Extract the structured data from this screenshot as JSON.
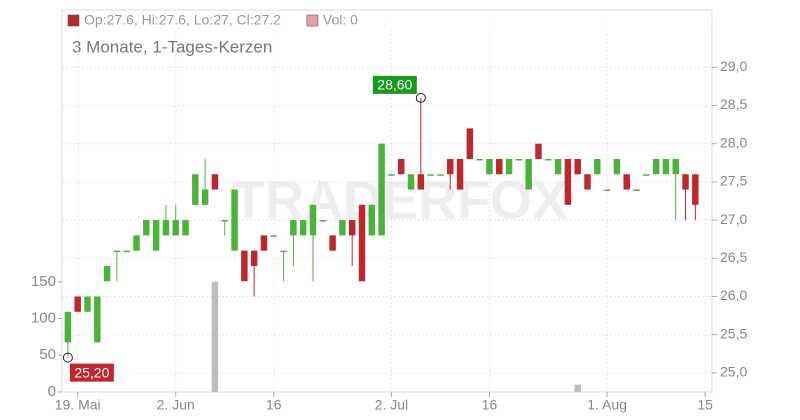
{
  "chart_data": {
    "type": "candlestick",
    "subtitle": "3 Monate, 1-Tages-Kerzen",
    "watermark": "TRADERFOX",
    "legend": [
      "Op:27.6, Hi:27.6, Lo:27, Cl:27.2",
      "Vol: 0"
    ],
    "legend_colors": [
      "#c0262d",
      "#e8a0a8"
    ],
    "up_color": "#4cb33a",
    "down_color": "#c0262d",
    "volume_color": "#bdbdbd",
    "grid": true,
    "categories": [
      null,
      null,
      null,
      null,
      null,
      null,
      null,
      null,
      null,
      null,
      null,
      null,
      null,
      null,
      null,
      null,
      null,
      null,
      null,
      null,
      null,
      null,
      null,
      null,
      null,
      null,
      null,
      null,
      null,
      null,
      null,
      null,
      null,
      null,
      null,
      null,
      null,
      null,
      null,
      null,
      null,
      null,
      null,
      null,
      null,
      null,
      null,
      null,
      null,
      null,
      null,
      null,
      null,
      null,
      null,
      null,
      null,
      null,
      null,
      null,
      null,
      null,
      null,
      null,
      null
    ],
    "open": [
      25.4,
      26.0,
      25.8,
      25.4,
      26.2,
      26.6,
      26.6,
      26.6,
      26.8,
      26.6,
      26.8,
      26.8,
      26.8,
      27.2,
      27.2,
      27.6,
      27.0,
      26.6,
      26.6,
      26.6,
      26.8,
      26.8,
      26.6,
      26.8,
      26.8,
      26.8,
      27.0,
      26.8,
      26.8,
      27.0,
      27.2,
      26.8,
      26.8,
      27.6,
      27.8,
      27.4,
      27.6,
      27.6,
      27.6,
      27.8,
      27.8,
      28.2,
      27.8,
      27.6,
      27.8,
      27.6,
      27.8,
      27.4,
      28.0,
      27.8,
      27.6,
      27.8,
      27.8,
      27.6,
      27.6,
      27.4,
      27.6,
      27.6,
      27.4,
      27.6,
      27.6,
      27.6,
      27.6,
      27.6,
      27.6
    ],
    "high": [
      25.8,
      26.0,
      26.0,
      26.0,
      26.4,
      26.6,
      26.6,
      26.8,
      27.0,
      27.0,
      27.2,
      27.2,
      27.0,
      27.6,
      27.8,
      27.6,
      27.0,
      27.4,
      26.6,
      26.6,
      26.8,
      26.8,
      26.6,
      27.0,
      27.0,
      27.2,
      27.0,
      26.8,
      27.0,
      27.0,
      27.2,
      27.2,
      28.0,
      27.6,
      27.8,
      27.6,
      28.6,
      27.6,
      27.6,
      27.8,
      27.8,
      28.2,
      27.8,
      27.8,
      27.8,
      27.8,
      27.8,
      27.8,
      28.0,
      27.8,
      27.8,
      27.8,
      27.8,
      27.6,
      27.8,
      27.4,
      27.8,
      27.6,
      27.4,
      27.6,
      27.8,
      27.8,
      27.8,
      27.6,
      27.6
    ],
    "low": [
      25.2,
      25.8,
      25.8,
      25.4,
      26.2,
      26.2,
      26.6,
      26.6,
      26.8,
      26.6,
      26.8,
      26.8,
      26.8,
      27.2,
      27.2,
      27.4,
      26.8,
      26.6,
      26.2,
      26.0,
      26.6,
      26.8,
      26.2,
      26.4,
      26.8,
      26.2,
      27.0,
      26.6,
      26.8,
      26.4,
      26.2,
      26.8,
      26.8,
      27.6,
      27.6,
      27.4,
      27.4,
      27.6,
      27.6,
      27.4,
      27.4,
      27.8,
      27.8,
      27.6,
      27.6,
      27.6,
      27.8,
      27.4,
      27.8,
      27.8,
      27.6,
      27.2,
      27.6,
      27.4,
      27.6,
      27.4,
      27.6,
      27.4,
      27.4,
      27.6,
      27.6,
      27.6,
      27.0,
      27.0,
      27.0
    ],
    "close": [
      25.8,
      25.8,
      26.0,
      26.0,
      26.4,
      26.6,
      26.6,
      26.8,
      27.0,
      27.0,
      27.0,
      27.0,
      27.0,
      27.6,
      27.4,
      27.4,
      27.0,
      27.4,
      26.2,
      26.4,
      26.6,
      26.8,
      26.6,
      27.0,
      27.0,
      27.2,
      27.0,
      26.6,
      27.0,
      26.8,
      26.2,
      27.2,
      28.0,
      27.6,
      27.6,
      27.6,
      27.4,
      27.6,
      27.6,
      27.6,
      27.4,
      27.8,
      27.8,
      27.8,
      27.6,
      27.8,
      27.8,
      27.8,
      27.8,
      27.8,
      27.8,
      27.2,
      27.6,
      27.4,
      27.8,
      27.4,
      27.8,
      27.4,
      27.4,
      27.6,
      27.8,
      27.8,
      27.8,
      27.4,
      27.2
    ],
    "volume": [
      0,
      0,
      0,
      0,
      0,
      0,
      0,
      0,
      0,
      0,
      0,
      0,
      0,
      0,
      0,
      150,
      0,
      0,
      0,
      0,
      0,
      0,
      0,
      0,
      0,
      0,
      0,
      0,
      0,
      0,
      0,
      0,
      0,
      0,
      0,
      0,
      0,
      0,
      0,
      0,
      0,
      0,
      0,
      0,
      0,
      0,
      0,
      0,
      0,
      0,
      0,
      0,
      10,
      0,
      0,
      0,
      0,
      0,
      0,
      0,
      0,
      0,
      0,
      0,
      0
    ],
    "xlim": [
      -0.6,
      65.7
    ],
    "xticks": [
      {
        "value": 1,
        "label": "19. Mai"
      },
      {
        "value": 11,
        "label": "2. Jun"
      },
      {
        "value": 21,
        "label": "16"
      },
      {
        "value": 33,
        "label": "2. Jul"
      },
      {
        "value": 43,
        "label": "16"
      },
      {
        "value": 55,
        "label": "1. Aug"
      },
      {
        "value": 65,
        "label": "15"
      }
    ],
    "ylim": [
      24.75,
      29.75
    ],
    "yticks": [
      {
        "value": 25,
        "label": "25,0"
      },
      {
        "value": 25.5,
        "label": "25,5"
      },
      {
        "value": 26,
        "label": "26,0"
      },
      {
        "value": 26.5,
        "label": "26,5"
      },
      {
        "value": 27,
        "label": "27,0"
      },
      {
        "value": 27.5,
        "label": "27,5"
      },
      {
        "value": 28,
        "label": "28,0"
      },
      {
        "value": 28.5,
        "label": "28,5"
      },
      {
        "value": 29,
        "label": "29,0"
      }
    ],
    "y2lim": [
      0,
      520
    ],
    "y2ticks": [
      0,
      50,
      100,
      150
    ],
    "annotations": [
      {
        "label": "28,60",
        "value": 28.6,
        "x": 36,
        "color": "#1a9a1a"
      },
      {
        "label": "25,20",
        "value": 25.2,
        "x": 0,
        "color": "#c0262d"
      }
    ]
  }
}
